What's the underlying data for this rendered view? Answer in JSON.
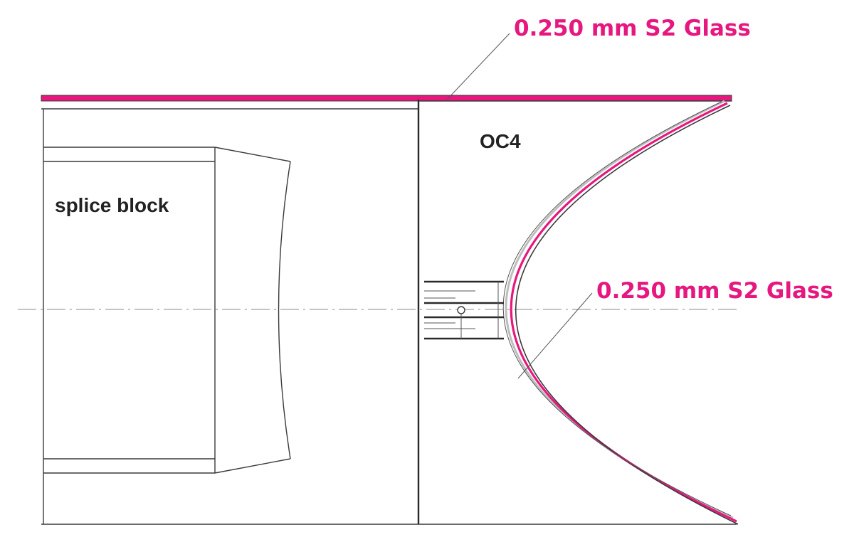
{
  "labels": {
    "top_glass": "0.250 mm S2 Glass",
    "curve_glass": "0.250 mm S2 Glass",
    "splice_block": "splice block",
    "oc4": "OC4"
  },
  "colors": {
    "glass_pink": "#e6177f",
    "line": "#3a3a3a",
    "background": "#ffffff"
  }
}
